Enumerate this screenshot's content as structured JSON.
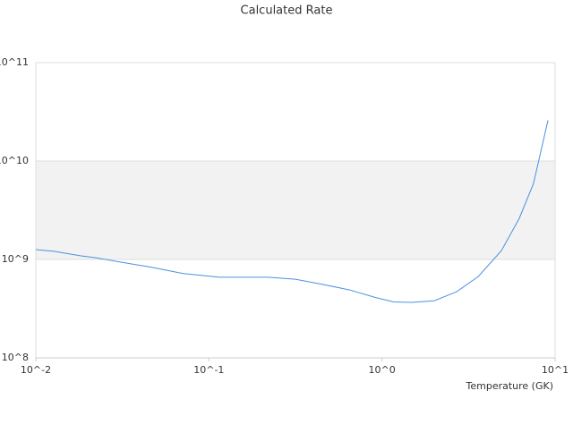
{
  "chart_data": {
    "type": "line",
    "title": "Calculated Rate",
    "x_label": "Temperature (GK)",
    "log_x": true,
    "log_y": true,
    "grid": "banded",
    "xlim": [
      0.01,
      10
    ],
    "ylim": [
      100000000,
      100000000000
    ],
    "xticks": [
      {
        "value": 0.01,
        "label": "10^-2"
      },
      {
        "value": 0.1,
        "label": "10^-1"
      },
      {
        "value": 1,
        "label": "10^0"
      },
      {
        "value": 10,
        "label": "10^1"
      }
    ],
    "yticks": [
      {
        "value": 100000000,
        "label": "10^8"
      },
      {
        "value": 1000000000,
        "label": "10^9"
      },
      {
        "value": 10000000000,
        "label": "10^10"
      },
      {
        "value": 100000000000,
        "label": "10^11"
      }
    ],
    "series": [
      {
        "color": "#4a90e2",
        "x": [
          0.01,
          0.0127,
          0.0181,
          0.0222,
          0.031,
          0.047,
          0.071,
          0.115,
          0.22,
          0.316,
          0.45,
          0.65,
          0.92,
          1.17,
          1.48,
          2.0,
          2.7,
          3.6,
          4.9,
          6.2,
          7.5,
          9.1
        ],
        "values": [
          1260000000,
          1210000000,
          1090000000,
          1040000000,
          940000000,
          830000000,
          720000000,
          660000000,
          660000000,
          630000000,
          560000000,
          490000000,
          410000000,
          370000000,
          366000000,
          380000000,
          470000000,
          670000000,
          1230000000,
          2600000000,
          5900000000,
          26000000000
        ]
      }
    ]
  }
}
